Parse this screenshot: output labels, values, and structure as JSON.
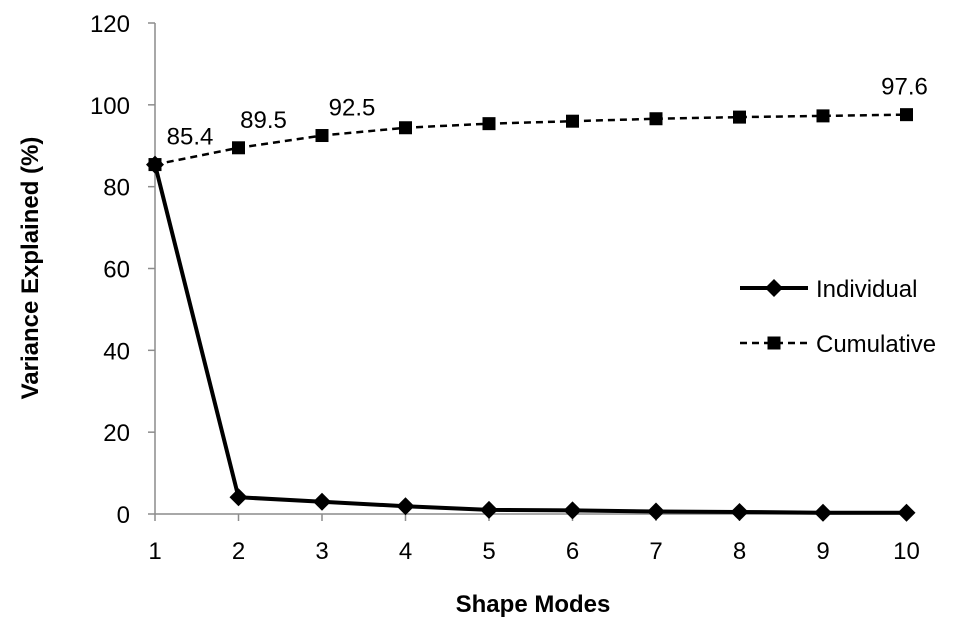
{
  "chart_data": {
    "type": "line",
    "title": "",
    "xlabel": "Shape Modes",
    "ylabel": "Variance Explained (%)",
    "x": [
      1,
      2,
      3,
      4,
      5,
      6,
      7,
      8,
      9,
      10
    ],
    "ylim": [
      0,
      120
    ],
    "yticks": [
      0,
      20,
      40,
      60,
      80,
      100,
      120
    ],
    "xticks": [
      1,
      2,
      3,
      4,
      5,
      6,
      7,
      8,
      9,
      10
    ],
    "grid": false,
    "legend_position": "right",
    "series": [
      {
        "name": "Individual",
        "values": [
          85.4,
          4.1,
          3.0,
          1.9,
          1.0,
          0.9,
          0.6,
          0.5,
          0.3,
          0.3
        ],
        "line_style": "solid",
        "marker": "diamond",
        "color": "#000000"
      },
      {
        "name": "Cumulative",
        "values": [
          85.4,
          89.5,
          92.5,
          94.4,
          95.4,
          96.0,
          96.6,
          97.0,
          97.3,
          97.6
        ],
        "line_style": "dashed",
        "marker": "square",
        "color": "#000000"
      }
    ],
    "data_labels": [
      {
        "series": "Cumulative",
        "x": 1,
        "text": "85.4"
      },
      {
        "series": "Cumulative",
        "x": 2,
        "text": "89.5"
      },
      {
        "series": "Cumulative",
        "x": 3,
        "text": "92.5"
      },
      {
        "series": "Cumulative",
        "x": 10,
        "text": "97.6"
      }
    ]
  }
}
